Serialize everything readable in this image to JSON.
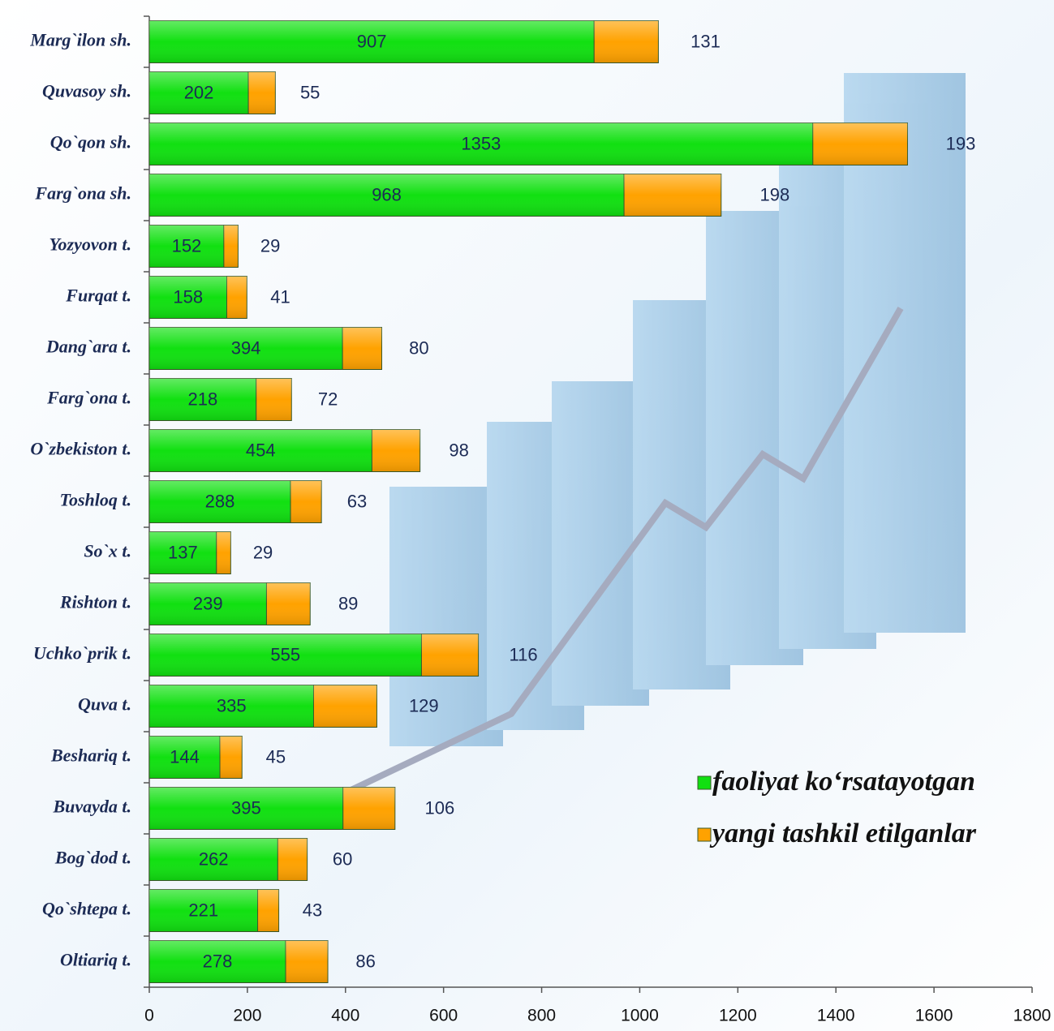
{
  "chart_data": {
    "type": "stacked_barh",
    "categories": [
      "Marg`ilon sh.",
      "Quvasoy sh.",
      "Qo`qon sh.",
      "Farg`ona sh.",
      "Yozyovon t.",
      "Furqat t.",
      "Dang`ara t.",
      "Farg`ona t.",
      "O`zbekiston t.",
      "Toshloq t.",
      "So`x t.",
      "Rishton t.",
      "Uchko`prik t.",
      "Quva t.",
      "Beshariq t.",
      "Buvayda t.",
      "Bog`dod t.",
      "Qo`shtepa t.",
      "Oltiariq t."
    ],
    "series": [
      {
        "name": "faoliyat ko‘rsatayotgan",
        "color": "#11e011",
        "values": [
          907,
          202,
          1353,
          968,
          152,
          158,
          394,
          218,
          454,
          288,
          137,
          239,
          555,
          335,
          144,
          395,
          262,
          221,
          278
        ]
      },
      {
        "name": "yangi tashkil etilganlar",
        "color": "#ffa200",
        "values": [
          131,
          55,
          193,
          198,
          29,
          41,
          80,
          72,
          98,
          63,
          29,
          89,
          116,
          129,
          45,
          106,
          60,
          43,
          86
        ]
      }
    ],
    "xlim": [
      0,
      1800
    ],
    "xticks": [
      0,
      200,
      400,
      600,
      800,
      1000,
      1200,
      1400,
      1600,
      1800
    ],
    "legend": "lower right"
  }
}
